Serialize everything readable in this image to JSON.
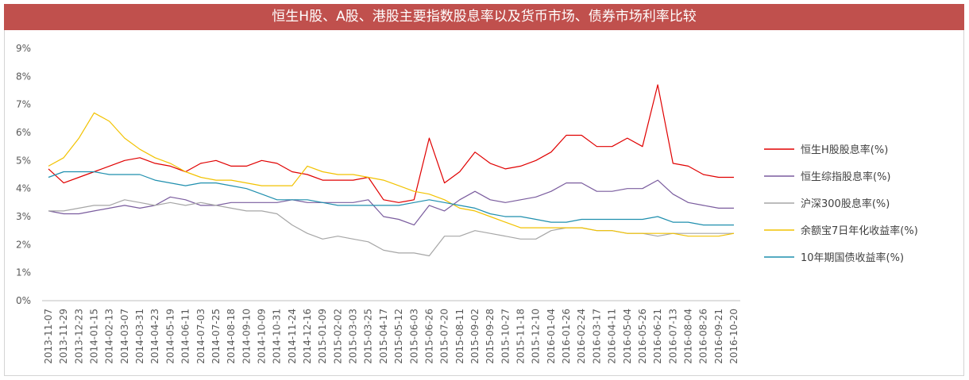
{
  "chart_data": {
    "type": "line",
    "title": "恒生H股、A股、港股主要指数股息率以及货币市场、债券市场利率比较",
    "xlabel": "",
    "ylabel": "",
    "ylim": [
      0,
      9
    ],
    "yticks": [
      "0%",
      "1%",
      "2%",
      "3%",
      "4%",
      "5%",
      "6%",
      "7%",
      "8%",
      "9%"
    ],
    "grid": false,
    "legend_position": "right",
    "x": [
      "2013-11-07",
      "2013-11-29",
      "2013-12-23",
      "2014-01-15",
      "2014-02-13",
      "2014-03-07",
      "2014-03-31",
      "2014-04-23",
      "2014-05-19",
      "2014-06-11",
      "2014-07-03",
      "2014-07-25",
      "2014-08-18",
      "2014-09-10",
      "2014-10-09",
      "2014-10-31",
      "2014-11-24",
      "2014-12-16",
      "2015-01-09",
      "2015-02-02",
      "2015-03-03",
      "2015-03-25",
      "2015-04-17",
      "2015-05-12",
      "2015-06-03",
      "2015-06-26",
      "2015-07-20",
      "2015-08-11",
      "2015-09-02",
      "2015-09-28",
      "2015-10-27",
      "2015-11-18",
      "2015-12-10",
      "2016-01-04",
      "2016-01-26",
      "2016-02-24",
      "2016-03-17",
      "2016-04-11",
      "2016-05-04",
      "2016-05-26",
      "2016-06-21",
      "2016-07-13",
      "2016-08-04",
      "2016-08-26",
      "2016-09-21",
      "2016-10-20"
    ],
    "series": [
      {
        "name": "恒生H股股息率(%)",
        "color": "#e00000",
        "values": [
          4.7,
          4.2,
          4.4,
          4.6,
          4.8,
          5.0,
          5.1,
          4.9,
          4.8,
          4.6,
          4.9,
          5.0,
          4.8,
          4.8,
          5.0,
          4.9,
          4.6,
          4.5,
          4.3,
          4.3,
          4.3,
          4.4,
          3.6,
          3.5,
          3.6,
          5.8,
          4.2,
          4.6,
          5.3,
          4.9,
          4.7,
          4.8,
          5.0,
          5.3,
          5.9,
          5.9,
          5.5,
          5.5,
          5.8,
          5.5,
          7.7,
          4.9,
          4.8,
          4.5,
          4.4,
          4.4
        ]
      },
      {
        "name": "恒生综指股息率(%)",
        "color": "#7a5c9e",
        "values": [
          3.2,
          3.1,
          3.1,
          3.2,
          3.3,
          3.4,
          3.3,
          3.4,
          3.7,
          3.6,
          3.4,
          3.4,
          3.5,
          3.5,
          3.5,
          3.5,
          3.6,
          3.5,
          3.5,
          3.5,
          3.5,
          3.6,
          3.0,
          2.9,
          2.7,
          3.4,
          3.2,
          3.6,
          3.9,
          3.6,
          3.5,
          3.6,
          3.7,
          3.9,
          4.2,
          4.2,
          3.9,
          3.9,
          4.0,
          4.0,
          4.3,
          3.8,
          3.5,
          3.4,
          3.3,
          3.3
        ]
      },
      {
        "name": "沪深300股息率(%)",
        "color": "#a6a6a6",
        "values": [
          3.2,
          3.2,
          3.3,
          3.4,
          3.4,
          3.6,
          3.5,
          3.4,
          3.5,
          3.4,
          3.5,
          3.4,
          3.3,
          3.2,
          3.2,
          3.1,
          2.7,
          2.4,
          2.2,
          2.3,
          2.2,
          2.1,
          1.8,
          1.7,
          1.7,
          1.6,
          2.3,
          2.3,
          2.5,
          2.4,
          2.3,
          2.2,
          2.2,
          2.5,
          2.6,
          2.6,
          2.5,
          2.5,
          2.4,
          2.4,
          2.3,
          2.4,
          2.4,
          2.4,
          2.4,
          2.4
        ]
      },
      {
        "name": "余额宝7日年化收益率(%)",
        "color": "#f2c200",
        "values": [
          4.8,
          5.1,
          5.8,
          6.7,
          6.4,
          5.8,
          5.4,
          5.1,
          4.9,
          4.6,
          4.4,
          4.3,
          4.3,
          4.2,
          4.1,
          4.1,
          4.1,
          4.8,
          4.6,
          4.5,
          4.5,
          4.4,
          4.3,
          4.1,
          3.9,
          3.8,
          3.6,
          3.3,
          3.2,
          3.0,
          2.8,
          2.6,
          2.6,
          2.6,
          2.6,
          2.6,
          2.5,
          2.5,
          2.4,
          2.4,
          2.4,
          2.4,
          2.3,
          2.3,
          2.3,
          2.4
        ]
      },
      {
        "name": "10年期国债收益率(%)",
        "color": "#1f8fae",
        "values": [
          4.4,
          4.6,
          4.6,
          4.6,
          4.5,
          4.5,
          4.5,
          4.3,
          4.2,
          4.1,
          4.2,
          4.2,
          4.1,
          4.0,
          3.8,
          3.6,
          3.6,
          3.6,
          3.5,
          3.4,
          3.4,
          3.4,
          3.4,
          3.4,
          3.5,
          3.6,
          3.5,
          3.4,
          3.3,
          3.1,
          3.0,
          3.0,
          2.9,
          2.8,
          2.8,
          2.9,
          2.9,
          2.9,
          2.9,
          2.9,
          3.0,
          2.8,
          2.8,
          2.7,
          2.7,
          2.7
        ]
      }
    ]
  }
}
